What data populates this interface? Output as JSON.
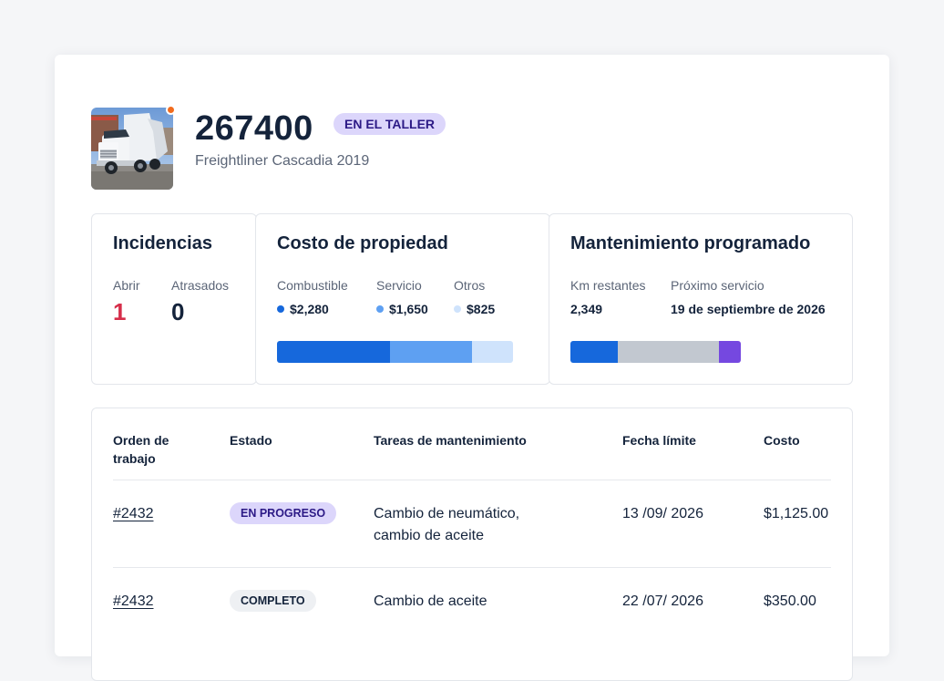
{
  "unit": {
    "number": "267400",
    "status_badge": "EN EL TALLER",
    "model": "Freightliner Cascadia 2019",
    "status_dot_color": "#f26b1d",
    "badge_color": "#dcd6fb"
  },
  "incidents": {
    "title": "Incidencias",
    "open_label": "Abrir",
    "open_value": "1",
    "open_color": "#d62e4a",
    "overdue_label": "Atrasados",
    "overdue_value": "0"
  },
  "ownership_cost": {
    "title": "Costo de propiedad",
    "items": [
      {
        "label": "Combustible",
        "value": "$2,280",
        "amount": 2280,
        "color": "#1668dc"
      },
      {
        "label": "Servicio",
        "value": "$1,650",
        "amount": 1650,
        "color": "#5ea0f2"
      },
      {
        "label": "Otros",
        "value": "$825",
        "amount": 825,
        "color": "#cfe3fc"
      }
    ]
  },
  "scheduled_maintenance": {
    "title": "Mantenimiento programado",
    "km_label": "Km restantes",
    "km_value": "2,349",
    "next_label": "Próximo servicio",
    "next_value": "19 de septiembre de 2026",
    "progress_segments": [
      {
        "fraction": 0.28,
        "color": "#1668dc"
      },
      {
        "fraction": 0.59,
        "color": "#c2c8d0"
      },
      {
        "fraction": 0.13,
        "color": "#7548e0"
      }
    ]
  },
  "work_orders": {
    "columns": [
      "Orden de trabajo",
      "Estado",
      "Tareas de mantenimiento",
      "Fecha límite",
      "Costo"
    ],
    "rows": [
      {
        "order": "#2432",
        "status": "EN PROGRESO",
        "status_kind": "progress",
        "tasks": "Cambio de neumático, cambio de aceite",
        "due": "13 /09/ 2026",
        "cost": "$1,125.00"
      },
      {
        "order": "#2432",
        "status": "COMPLETO",
        "status_kind": "done",
        "tasks": "Cambio de aceite",
        "due": "22 /07/ 2026",
        "cost": "$350.00"
      }
    ]
  }
}
